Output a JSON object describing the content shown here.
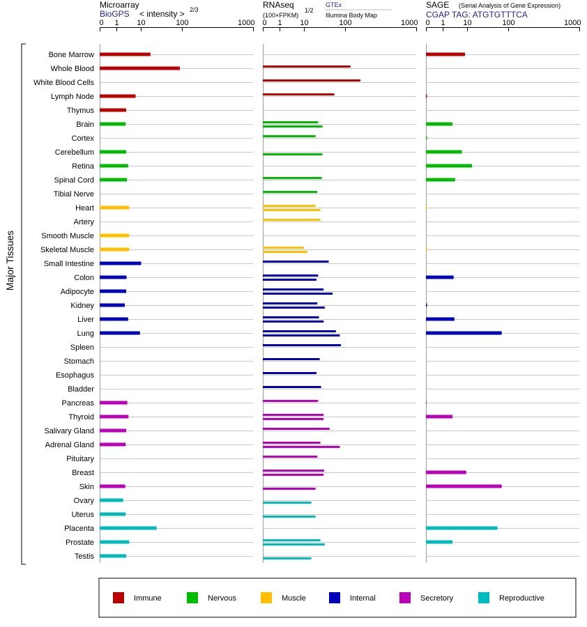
{
  "chart_data": {
    "type": "bar",
    "ylabel": "Major Tissues",
    "tissues": [
      "Bone Marrow",
      "Whole Blood",
      "White Blood Cells",
      "Lymph Node",
      "Thymus",
      "Brain",
      "Cortex",
      "Cerebellum",
      "Retina",
      "Spinal Cord",
      "Tibial Nerve",
      "Heart",
      "Artery",
      "Smooth Muscle",
      "Skeletal Muscle",
      "Small Intestine",
      "Colon",
      "Adipocyte",
      "Kidney",
      "Liver",
      "Lung",
      "Spleen",
      "Stomach",
      "Esophagus",
      "Bladder",
      "Pancreas",
      "Thyroid",
      "Salivary Gland",
      "Adrenal Gland",
      "Pituitary",
      "Breast",
      "Skin",
      "Ovary",
      "Uterus",
      "Placenta",
      "Prostate",
      "Testis"
    ],
    "groups": [
      "Immune",
      "Immune",
      "Immune",
      "Immune",
      "Immune",
      "Nervous",
      "Nervous",
      "Nervous",
      "Nervous",
      "Nervous",
      "Nervous",
      "Muscle",
      "Muscle",
      "Muscle",
      "Muscle",
      "Internal",
      "Internal",
      "Internal",
      "Internal",
      "Internal",
      "Internal",
      "Internal",
      "Internal",
      "Internal",
      "Internal",
      "Secretory",
      "Secretory",
      "Secretory",
      "Secretory",
      "Secretory",
      "Secretory",
      "Secretory",
      "Reproductive",
      "Reproductive",
      "Reproductive",
      "Reproductive",
      "Reproductive"
    ],
    "legend": [
      {
        "name": "Immune",
        "color": "#bb0000"
      },
      {
        "name": "Nervous",
        "color": "#00bb00"
      },
      {
        "name": "Muscle",
        "color": "#ffbf00"
      },
      {
        "name": "Internal",
        "color": "#0000bb"
      },
      {
        "name": "Secretory",
        "color": "#bb00bb"
      },
      {
        "name": "Reproductive",
        "color": "#00bbbb"
      }
    ],
    "panels": [
      {
        "key": "microarray",
        "title": "Microarray",
        "subtitle": "BioGPS",
        "subtitle2": "< intensity >",
        "exponent": "2/3",
        "ticks": [
          "0",
          "1",
          "10",
          "100",
          "1000"
        ],
        "values": [
          17,
          90,
          0,
          6,
          2.5,
          2.4,
          0,
          2.5,
          3,
          2.7,
          0,
          3.3,
          0,
          3.3,
          3.3,
          10,
          2.6,
          2.5,
          2.2,
          3,
          9,
          0,
          0,
          0,
          0,
          2.8,
          3.1,
          2.5,
          2.4,
          0,
          0,
          2.3,
          1.9,
          2.4,
          24,
          3.3,
          2.5
        ]
      },
      {
        "key": "rnaseq",
        "title": "RNAseq",
        "subtitle": "(100×FPKM)",
        "exponent": "1/2",
        "source_top": "GTEx",
        "source_bottom": "Illumina Body Map",
        "ticks": [
          "0",
          "1",
          "10",
          "100",
          "1000"
        ],
        "gtex": [
          0,
          120,
          165,
          55,
          0,
          22,
          19,
          0,
          0,
          27,
          21,
          19,
          25,
          0,
          9.5,
          40,
          22,
          30,
          21,
          23,
          60,
          80,
          24,
          20,
          26,
          22,
          30,
          42,
          25,
          21,
          31,
          0,
          0,
          0,
          0,
          25,
          0
        ],
        "bodymap": [
          0,
          0,
          0,
          0,
          0,
          28,
          0,
          28,
          0,
          0,
          0,
          25,
          0,
          0,
          12,
          0,
          20,
          50,
          32,
          30,
          75,
          0,
          0,
          0,
          0,
          0,
          30,
          0,
          75,
          0,
          30,
          19,
          15,
          19,
          0,
          32,
          15
        ]
      },
      {
        "key": "sage",
        "title": "SAGE",
        "title_note": "(Serial Analysis of Gene Expression)",
        "subtitle": "CGAP TAG: ATGTGTTTCA",
        "ticks": [
          "0",
          "1",
          "10",
          "100",
          "1000"
        ],
        "values": [
          8,
          0,
          0,
          0.02,
          0,
          2.5,
          0.01,
          6,
          13,
          3.2,
          0,
          0.01,
          0,
          0,
          0.01,
          0,
          2.8,
          0,
          0.02,
          3,
          70,
          0,
          0,
          0,
          0,
          0.03,
          2.5,
          0,
          0,
          0,
          9,
          70,
          0,
          0,
          55,
          2.5,
          0
        ]
      }
    ]
  }
}
